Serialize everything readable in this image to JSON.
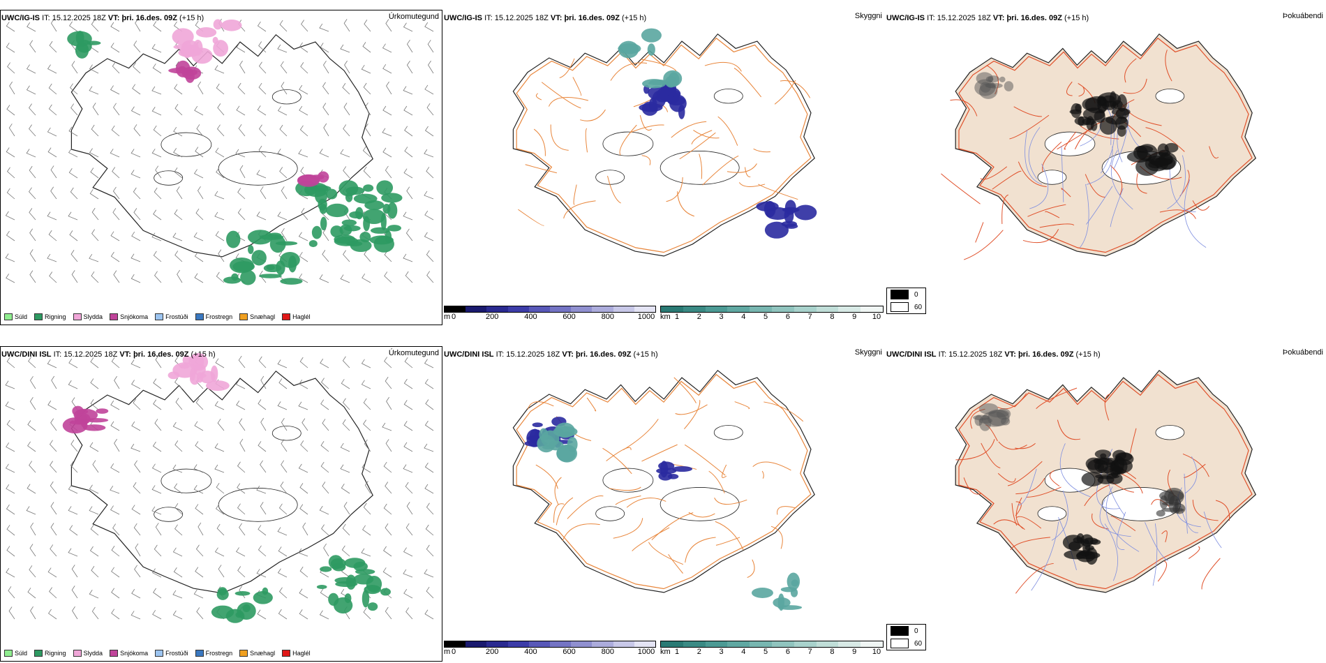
{
  "rows": [
    {
      "model": "UWC/IG-IS",
      "it_label": "IT:",
      "it_value": "15.12.2025 18Z",
      "vt_label": "VT:",
      "vt_value": "þri. 16.des. 09Z",
      "lead": "(+15 h)"
    },
    {
      "model": "UWC/DINI ISL",
      "it_label": "IT:",
      "it_value": "15.12.2025 18Z",
      "vt_label": "VT:",
      "vt_value": "þri. 16.des. 09Z",
      "lead": "(+15 h)"
    }
  ],
  "panels": {
    "precip_type": {
      "title": "Úrkomutegund"
    },
    "cloud": {
      "title": "Skyggni"
    },
    "fog": {
      "title": "Þokuábendi"
    }
  },
  "precip_legend": [
    {
      "label": "Súld",
      "color": "#90ee90"
    },
    {
      "label": "Rigning",
      "color": "#2e9a62"
    },
    {
      "label": "Slydda",
      "color": "#f0a6d8"
    },
    {
      "label": "Snjókoma",
      "color": "#c0449a"
    },
    {
      "label": "Frostúði",
      "color": "#9cc4f0"
    },
    {
      "label": "Frostregn",
      "color": "#3a78c0"
    },
    {
      "label": "Snæhagl",
      "color": "#f0a020"
    },
    {
      "label": "Haglél",
      "color": "#e01818"
    }
  ],
  "cbar_m": {
    "unit": "m",
    "ticks": [
      "0",
      "200",
      "400",
      "600",
      "800",
      "1000"
    ],
    "colors": [
      "#000000",
      "#1a1a6e",
      "#2a2a90",
      "#3c3ca8",
      "#5858b8",
      "#7474c4",
      "#9090d0",
      "#acacdc",
      "#c8c8e8",
      "#e4e4f4"
    ]
  },
  "cbar_km": {
    "unit": "km",
    "ticks": [
      "1",
      "2",
      "3",
      "4",
      "5",
      "6",
      "7",
      "8",
      "9",
      "10"
    ],
    "colors": [
      "#2a7a74",
      "#3a8a84",
      "#4c9a94",
      "#60a8a2",
      "#78b6b0",
      "#90c4be",
      "#a8d2cc",
      "#c0ded8",
      "#d8eae6",
      "#f0f6f4"
    ]
  },
  "fog_legend": [
    {
      "label": "0",
      "color": "#000000"
    },
    {
      "label": "60",
      "color": "#ffffff"
    }
  ],
  "map_colors": {
    "land": "#ffffff",
    "coast": "#222222",
    "roads_orange": "#e8853a",
    "roads_red": "#e0502a",
    "fog_land": "#f1e1d0",
    "rivers": "#7f8fe0",
    "rain": "#2e9a62",
    "sleet": "#f0a6d8",
    "snow": "#c0449a",
    "blue_dark": "#2a2aa0",
    "teal": "#5aa6a0",
    "fog_dark": "#111111"
  }
}
